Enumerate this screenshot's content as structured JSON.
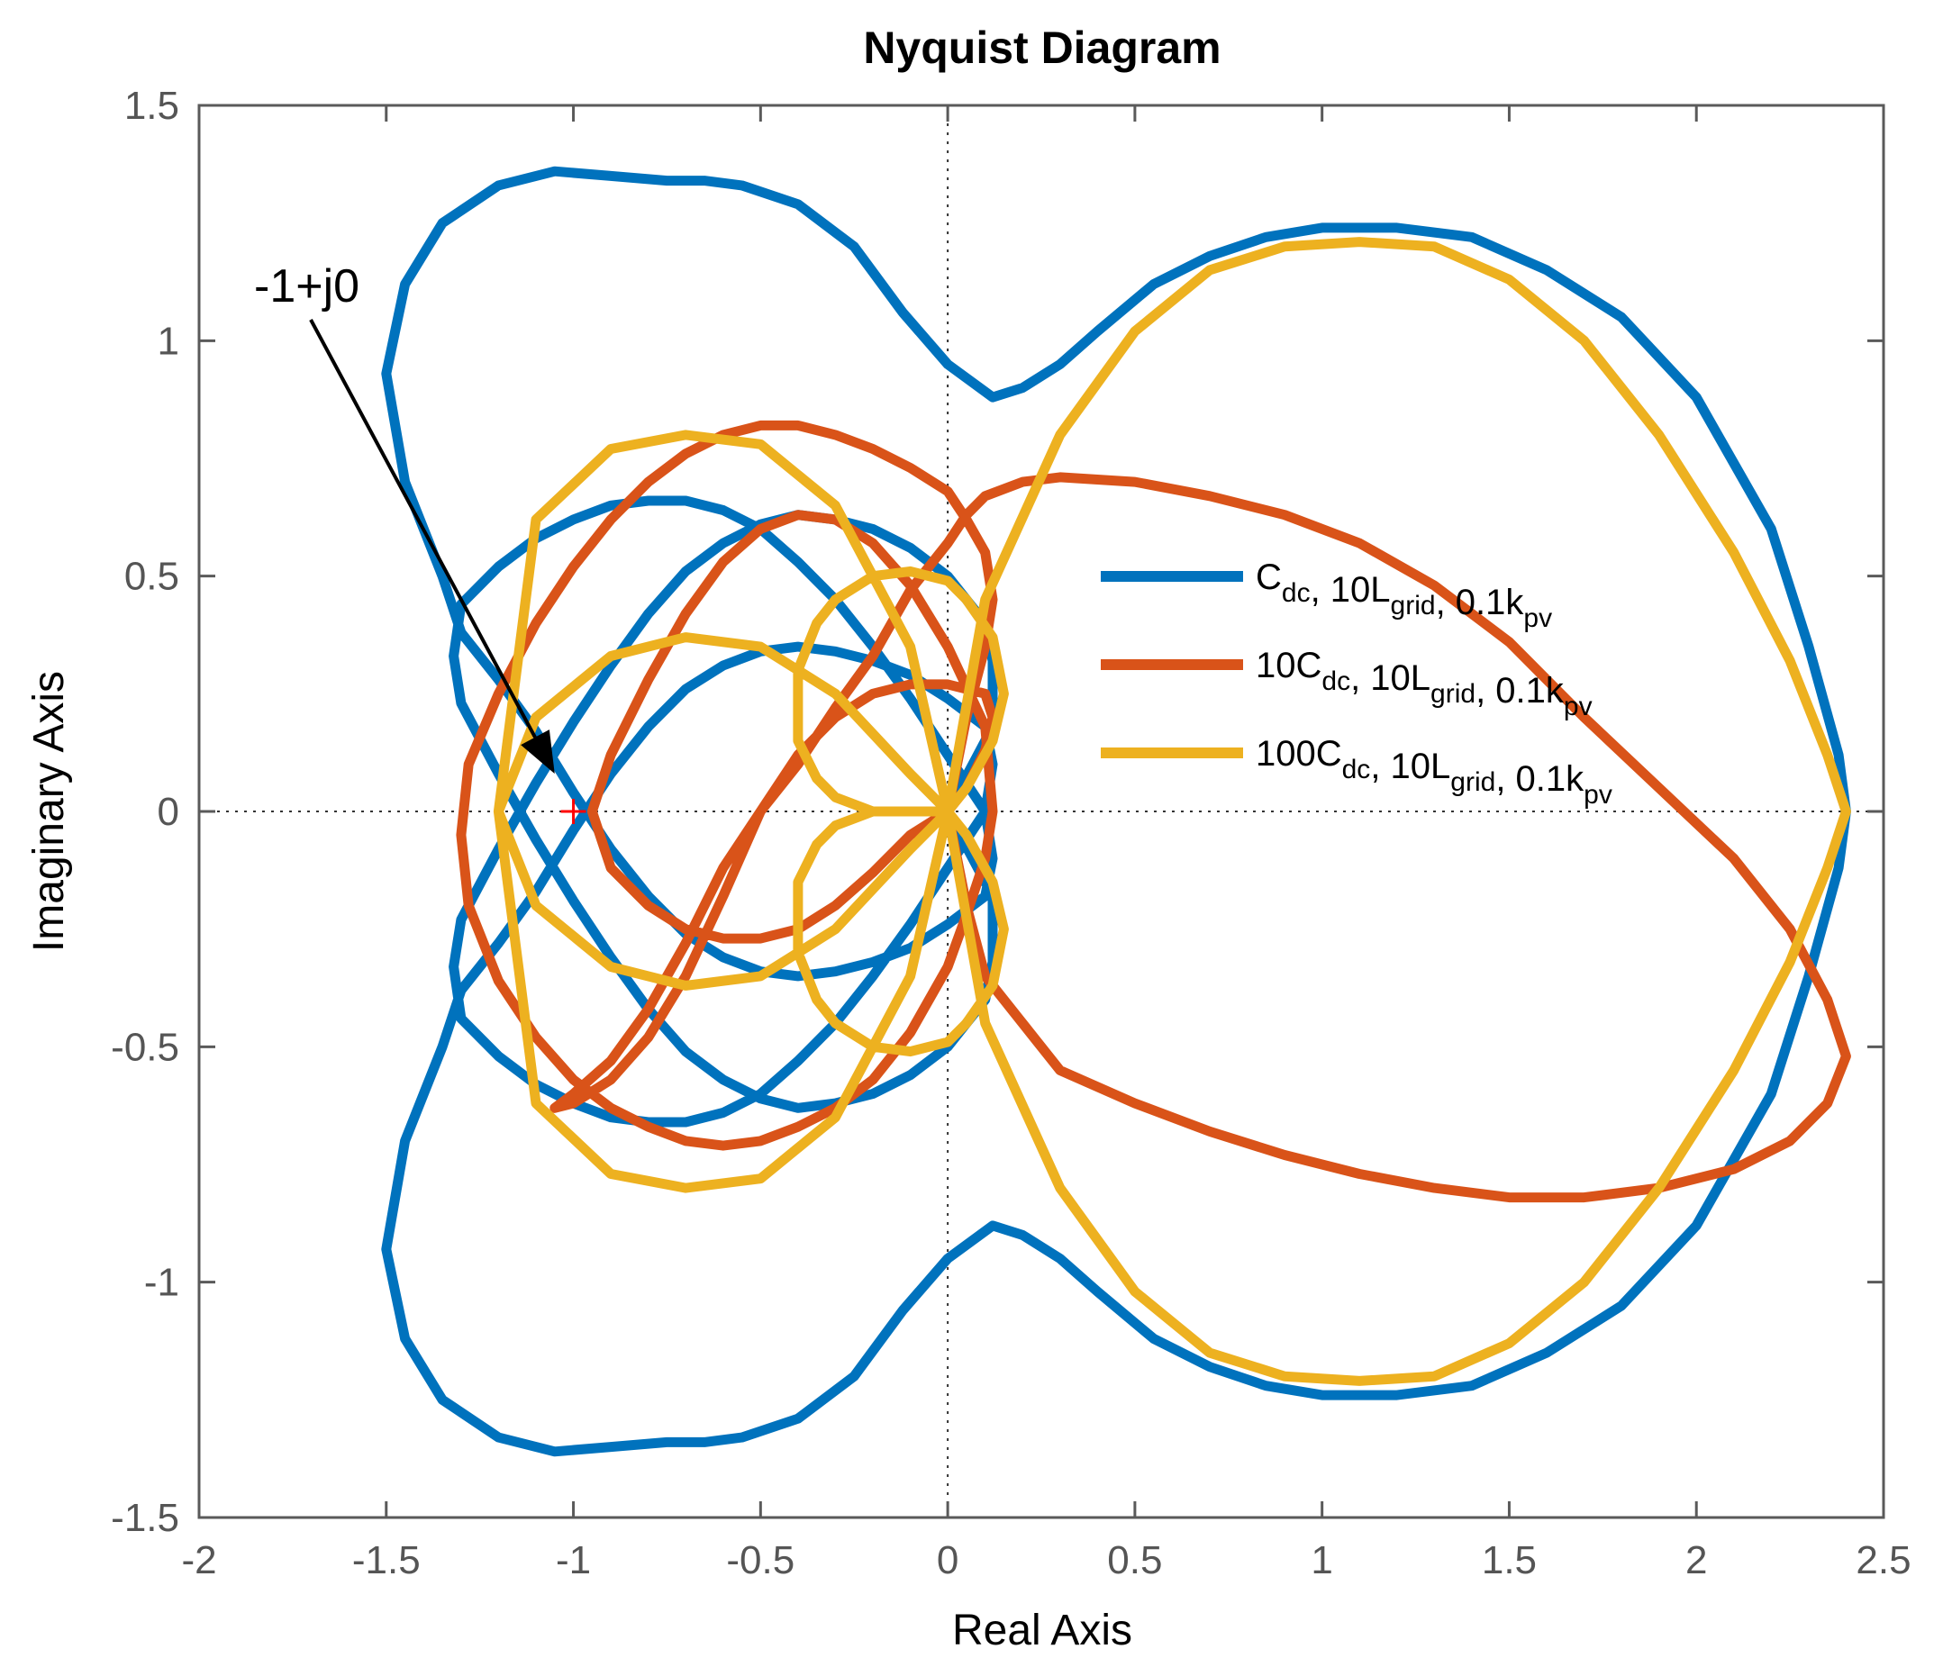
{
  "chart_data": {
    "type": "line",
    "title": "Nyquist Diagram",
    "xlabel": "Real Axis",
    "ylabel": "Imaginary Axis",
    "xlim": [
      -2,
      2.5
    ],
    "ylim": [
      -1.5,
      1.5
    ],
    "xticks": [
      "-2",
      "-1.5",
      "-1",
      "-0.5",
      "0",
      "0.5",
      "1",
      "1.5",
      "2",
      "2.5"
    ],
    "xtick_values": [
      -2,
      -1.5,
      -1,
      -0.5,
      0,
      0.5,
      1,
      1.5,
      2,
      2.5
    ],
    "yticks": [
      "1.5",
      "1",
      "0.5",
      "0",
      "-0.5",
      "-1",
      "-1.5"
    ],
    "ytick_values": [
      1.5,
      1,
      0.5,
      0,
      -0.5,
      -1,
      -1.5
    ],
    "grid": false,
    "legend_position": "right",
    "critical_point": {
      "x": -1,
      "y": 0,
      "color": "#ff0000"
    },
    "annotation": {
      "text": "-1+j0",
      "x": -1.05,
      "y": 0.08
    },
    "series": [
      {
        "color": "#0072bd",
        "legend": {
          "base1": "C",
          "sub1": "dc",
          "mid": ", 10L",
          "sub2": "grid",
          "tail": ", 0.1k",
          "sub3": "pv"
        },
        "x": [
          0.0,
          0.0,
          0.12,
          0.12,
          0.1,
          0.0,
          -0.1,
          -0.2,
          -0.3,
          -0.4,
          -0.5,
          -0.6,
          -0.7,
          -0.8,
          -0.9,
          -1.0,
          -1.1,
          -1.2,
          -1.3,
          -1.32,
          -1.3,
          -1.2,
          -1.1,
          -1.0,
          -0.9,
          -0.8,
          -0.7,
          -0.6,
          -0.5,
          -0.4,
          -0.3,
          -0.2,
          -0.1,
          0.0,
          0.1,
          0.12,
          0.1,
          0.0,
          -0.1,
          -0.2,
          -0.3,
          -0.4,
          -0.5,
          -0.6,
          -0.7,
          -0.8,
          -0.9,
          -1.0,
          -1.1,
          -1.2,
          -1.3,
          -1.35,
          -1.45,
          -1.5,
          -1.45,
          -1.35,
          -1.2,
          -1.05,
          -0.9,
          -0.75,
          -0.65,
          -0.55,
          -0.4,
          -0.25,
          -0.12,
          0.0,
          0.12,
          0.2,
          0.3,
          0.4,
          0.55,
          0.7,
          0.85,
          1.0,
          1.2,
          1.4,
          1.6,
          1.8,
          2.0,
          2.2,
          2.3,
          2.38,
          2.4,
          2.38,
          2.3,
          2.2,
          2.0,
          1.8,
          1.6,
          1.4,
          1.2,
          1.0,
          0.85,
          0.7,
          0.55,
          0.4,
          0.3,
          0.2,
          0.12,
          0.0,
          -0.12,
          -0.25,
          -0.4,
          -0.55,
          -0.65,
          -0.75,
          -0.9,
          -1.05,
          -1.2,
          -1.35,
          -1.45,
          -1.5,
          -1.45,
          -1.35,
          -1.3,
          -1.2,
          -1.1,
          -1.0,
          -0.9,
          -0.8,
          -0.7,
          -0.6,
          -0.5,
          -0.4,
          -0.3,
          -0.2,
          -0.1,
          0.0,
          0.1,
          0.12,
          0.1,
          0.0,
          -0.1,
          -0.2,
          -0.3,
          -0.4,
          -0.5,
          -0.6,
          -0.7,
          -0.8,
          -0.9,
          -1.0,
          -1.1,
          -1.2,
          -1.3,
          -1.32,
          -1.3,
          -1.2,
          -1.1,
          -1.0,
          -0.9,
          -0.8,
          -0.7,
          -0.6,
          -0.5,
          -0.4,
          -0.3,
          -0.2,
          -0.1,
          0.0,
          0.1,
          0.12,
          0.12,
          0.0,
          0.0
        ],
        "y": [
          0.0,
          0.0,
          0.18,
          0.32,
          0.4,
          0.5,
          0.56,
          0.6,
          0.62,
          0.63,
          0.61,
          0.57,
          0.51,
          0.42,
          0.31,
          0.19,
          0.06,
          -0.08,
          -0.23,
          -0.33,
          -0.44,
          -0.52,
          -0.58,
          -0.62,
          -0.65,
          -0.66,
          -0.66,
          -0.64,
          -0.6,
          -0.53,
          -0.45,
          -0.35,
          -0.24,
          -0.12,
          0.0,
          0.1,
          0.18,
          0.24,
          0.29,
          0.32,
          0.34,
          0.35,
          0.34,
          0.31,
          0.26,
          0.18,
          0.08,
          -0.04,
          -0.17,
          -0.28,
          -0.38,
          -0.5,
          -0.7,
          -0.93,
          -1.12,
          -1.25,
          -1.33,
          -1.36,
          -1.35,
          -1.34,
          -1.34,
          -1.33,
          -1.29,
          -1.2,
          -1.06,
          -0.95,
          -0.88,
          -0.9,
          -0.95,
          -1.02,
          -1.12,
          -1.18,
          -1.22,
          -1.24,
          -1.24,
          -1.22,
          -1.15,
          -1.05,
          -0.88,
          -0.6,
          -0.35,
          -0.12,
          0.0,
          0.12,
          0.35,
          0.6,
          0.88,
          1.05,
          1.15,
          1.22,
          1.24,
          1.24,
          1.22,
          1.18,
          1.12,
          1.02,
          0.95,
          0.9,
          0.88,
          0.95,
          1.06,
          1.2,
          1.29,
          1.33,
          1.34,
          1.34,
          1.35,
          1.36,
          1.33,
          1.25,
          1.12,
          0.93,
          0.7,
          0.5,
          0.38,
          0.28,
          0.17,
          0.04,
          -0.08,
          -0.18,
          -0.26,
          -0.31,
          -0.34,
          -0.35,
          -0.34,
          -0.32,
          -0.29,
          -0.24,
          -0.18,
          -0.1,
          0.0,
          0.12,
          0.24,
          0.35,
          0.45,
          0.53,
          0.6,
          0.64,
          0.66,
          0.66,
          0.65,
          0.62,
          0.58,
          0.52,
          0.44,
          0.33,
          0.23,
          0.08,
          -0.06,
          -0.19,
          -0.31,
          -0.42,
          -0.51,
          -0.57,
          -0.61,
          -0.63,
          -0.62,
          -0.6,
          -0.56,
          -0.5,
          -0.4,
          -0.32,
          -0.18,
          0.0,
          0.0
        ]
      },
      {
        "color": "#d95319",
        "legend": {
          "base1": "10C",
          "sub1": "dc",
          "mid": ", 10L",
          "sub2": "grid",
          "tail": ", 0.1k",
          "sub3": "pv"
        },
        "x": [
          0.0,
          0.05,
          0.1,
          0.12,
          0.1,
          0.05,
          0.0,
          -0.1,
          -0.2,
          -0.3,
          -0.4,
          -0.5,
          -0.6,
          -0.7,
          -0.8,
          -0.9,
          -1.0,
          -1.1,
          -1.2,
          -1.28,
          -1.3,
          -1.28,
          -1.2,
          -1.1,
          -1.0,
          -0.9,
          -0.8,
          -0.7,
          -0.6,
          -0.5,
          -0.4,
          -0.3,
          -0.2,
          -0.1,
          0.0,
          0.05,
          0.1,
          0.12,
          0.1,
          0.0,
          -0.1,
          -0.2,
          -0.3,
          -0.4,
          -0.5,
          -0.6,
          -0.7,
          -0.8,
          -0.9,
          -0.95,
          -0.9,
          -0.8,
          -0.7,
          -0.6,
          -0.5,
          -0.4,
          -0.3,
          -0.2,
          -0.1,
          0.0,
          0.05,
          0.1,
          0.12,
          0.1,
          0.0,
          -0.1,
          -0.2,
          -0.3,
          -0.4,
          -0.5,
          -0.6,
          -0.7,
          -0.8,
          -0.9,
          -1.0,
          -1.05,
          -1.0,
          -0.9,
          -0.8,
          -0.7,
          -0.6,
          -0.5,
          -0.4,
          -0.3,
          -0.2,
          -0.1,
          0.0,
          0.05,
          0.1,
          0.2,
          0.3,
          0.5,
          0.7,
          0.9,
          1.1,
          1.3,
          1.5,
          1.7,
          1.9,
          2.1,
          2.25,
          2.35,
          2.4,
          2.35,
          2.25,
          2.1,
          1.9,
          1.7,
          1.5,
          1.3,
          1.1,
          0.9,
          0.7,
          0.5,
          0.3,
          0.2,
          0.1,
          0.05,
          0.0
        ],
        "y": [
          0.0,
          0.2,
          0.35,
          0.45,
          0.55,
          0.62,
          0.68,
          0.73,
          0.77,
          0.8,
          0.82,
          0.82,
          0.8,
          0.76,
          0.7,
          0.62,
          0.52,
          0.4,
          0.25,
          0.1,
          -0.05,
          -0.2,
          -0.36,
          -0.48,
          -0.57,
          -0.63,
          -0.67,
          -0.7,
          -0.71,
          -0.7,
          -0.67,
          -0.63,
          -0.57,
          -0.47,
          -0.33,
          -0.22,
          -0.1,
          0.0,
          0.18,
          0.35,
          0.48,
          0.57,
          0.62,
          0.63,
          0.6,
          0.53,
          0.42,
          0.28,
          0.12,
          0.0,
          -0.12,
          -0.2,
          -0.25,
          -0.27,
          -0.27,
          -0.25,
          -0.2,
          -0.13,
          -0.05,
          0.0,
          0.05,
          0.13,
          0.2,
          0.25,
          0.27,
          0.27,
          0.25,
          0.2,
          0.12,
          0.0,
          -0.12,
          -0.28,
          -0.42,
          -0.53,
          -0.6,
          -0.63,
          -0.62,
          -0.57,
          -0.48,
          -0.35,
          -0.18,
          0.0,
          0.1,
          0.22,
          0.33,
          0.47,
          0.57,
          0.63,
          0.67,
          0.7,
          0.71,
          0.7,
          0.67,
          0.63,
          0.57,
          0.48,
          0.36,
          0.2,
          0.05,
          -0.1,
          -0.25,
          -0.4,
          -0.52,
          -0.62,
          -0.7,
          -0.76,
          -0.8,
          -0.82,
          -0.82,
          -0.8,
          -0.77,
          -0.73,
          -0.68,
          -0.62,
          -0.55,
          -0.45,
          -0.35,
          -0.2,
          0.0
        ]
      },
      {
        "color": "#edb120",
        "legend": {
          "base1": "100C",
          "sub1": "dc",
          "mid": ", 10L",
          "sub2": "grid",
          "tail": ", 0.1k",
          "sub3": "pv"
        },
        "x": [
          0.0,
          0.05,
          0.12,
          0.15,
          0.12,
          0.05,
          0.0,
          -0.1,
          -0.2,
          -0.3,
          -0.35,
          -0.4,
          -0.4,
          -0.35,
          -0.3,
          -0.2,
          -0.1,
          0.0,
          0.05,
          0.12,
          0.15,
          0.12,
          0.05,
          0.0,
          -0.1,
          -0.2,
          -0.3,
          -0.35,
          -0.4,
          -0.4,
          -0.35,
          -0.3,
          -0.2,
          -0.1,
          0.0,
          -0.1,
          -0.3,
          -0.5,
          -0.7,
          -0.9,
          -1.1,
          -1.2,
          -1.1,
          -0.9,
          -0.7,
          -0.5,
          -0.3,
          -0.1,
          0.0,
          -0.1,
          -0.3,
          -0.5,
          -0.7,
          -0.9,
          -1.1,
          -1.2,
          -1.1,
          -0.9,
          -0.7,
          -0.5,
          -0.3,
          -0.1,
          0.0,
          0.1,
          0.3,
          0.5,
          0.7,
          0.9,
          1.1,
          1.3,
          1.5,
          1.7,
          1.9,
          2.1,
          2.25,
          2.35,
          2.4,
          2.35,
          2.25,
          2.1,
          1.9,
          1.7,
          1.5,
          1.3,
          1.1,
          0.9,
          0.7,
          0.5,
          0.3,
          0.1,
          0.0
        ],
        "y": [
          0.0,
          0.05,
          0.15,
          0.25,
          0.37,
          0.45,
          0.49,
          0.51,
          0.5,
          0.45,
          0.4,
          0.3,
          0.15,
          0.07,
          0.03,
          0.0,
          0.0,
          0.0,
          -0.05,
          -0.15,
          -0.25,
          -0.37,
          -0.45,
          -0.49,
          -0.51,
          -0.5,
          -0.45,
          -0.4,
          -0.3,
          -0.15,
          -0.07,
          -0.03,
          0.0,
          0.0,
          0.0,
          0.08,
          0.25,
          0.35,
          0.37,
          0.33,
          0.2,
          0.0,
          -0.2,
          -0.33,
          -0.37,
          -0.35,
          -0.25,
          -0.08,
          0.0,
          0.35,
          0.65,
          0.78,
          0.8,
          0.77,
          0.62,
          0.0,
          -0.62,
          -0.77,
          -0.8,
          -0.78,
          -0.65,
          -0.35,
          0.0,
          0.45,
          0.8,
          1.02,
          1.15,
          1.2,
          1.21,
          1.2,
          1.13,
          1.0,
          0.8,
          0.55,
          0.32,
          0.12,
          0.0,
          -0.12,
          -0.32,
          -0.55,
          -0.8,
          -1.0,
          -1.13,
          -1.2,
          -1.21,
          -1.2,
          -1.15,
          -1.02,
          -0.8,
          -0.45,
          0.0
        ]
      }
    ]
  }
}
